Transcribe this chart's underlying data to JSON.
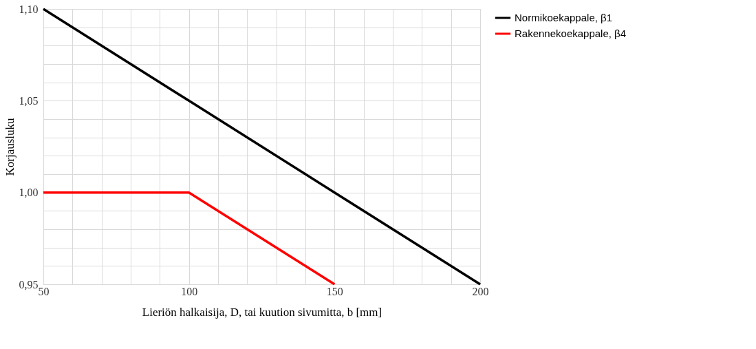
{
  "chart_data": {
    "type": "line",
    "xlabel": "Lieriön halkaisija, D, tai kuution sivumitta, b [mm]",
    "ylabel": "Korjausluku",
    "x": [
      50,
      100,
      150,
      200
    ],
    "series": [
      {
        "name": "Normikoekappale, β1",
        "color": "#000000",
        "values": [
          1.1,
          1.05,
          1.0,
          0.95
        ]
      },
      {
        "name": "Rakennekoekappale, β4",
        "color": "#ff0000",
        "values": [
          1.0,
          1.0,
          0.95,
          null
        ]
      }
    ],
    "xlim": [
      50,
      200
    ],
    "xticks": [
      50,
      {
        "value": 60,
        "label": null
      },
      {
        "value": 70,
        "label": null
      },
      {
        "value": 80,
        "label": null
      },
      {
        "value": 90,
        "label": null
      },
      100,
      {
        "value": 110,
        "label": null
      },
      {
        "value": 120,
        "label": null
      },
      {
        "value": 130,
        "label": null
      },
      {
        "value": 140,
        "label": null
      },
      150,
      {
        "value": 160,
        "label": null
      },
      {
        "value": 170,
        "label": null
      },
      {
        "value": 180,
        "label": null
      },
      {
        "value": 190,
        "label": null
      },
      200
    ],
    "ylim": [
      0.95,
      1.1
    ],
    "yticks": [
      {
        "value": 0.95,
        "label": "0,95"
      },
      {
        "value": 0.96,
        "label": null
      },
      {
        "value": 0.97,
        "label": null
      },
      {
        "value": 0.98,
        "label": null
      },
      {
        "value": 0.99,
        "label": null
      },
      {
        "value": 1.0,
        "label": "1,00"
      },
      {
        "value": 1.01,
        "label": null
      },
      {
        "value": 1.02,
        "label": null
      },
      {
        "value": 1.03,
        "label": null
      },
      {
        "value": 1.04,
        "label": null
      },
      {
        "value": 1.05,
        "label": "1,05"
      },
      {
        "value": 1.06,
        "label": null
      },
      {
        "value": 1.07,
        "label": null
      },
      {
        "value": 1.08,
        "label": null
      },
      {
        "value": 1.09,
        "label": null
      },
      {
        "value": 1.1,
        "label": "1,10"
      }
    ],
    "grid": true,
    "legend": "right",
    "marker": "none",
    "line_style": "solid"
  }
}
